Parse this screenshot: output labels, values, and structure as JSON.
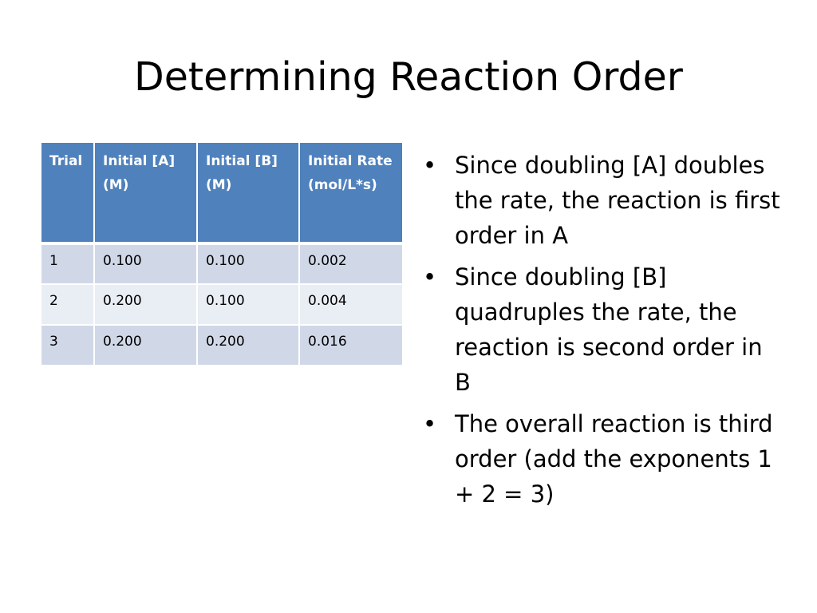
{
  "slide": {
    "title": "Determining Reaction Order"
  },
  "table": {
    "headers": [
      "Trial",
      "Initial [A] (M)",
      "Initial [B] (M)",
      "Initial Rate (mol/L*s)"
    ],
    "rows": [
      [
        "1",
        "0.100",
        "0.100",
        "0.002"
      ],
      [
        "2",
        "0.200",
        "0.100",
        "0.004"
      ],
      [
        "3",
        "0.200",
        "0.200",
        "0.016"
      ]
    ],
    "colors": {
      "header": "#4f81bd",
      "row_odd": "#d0d8e8",
      "row_even": "#e9edf4"
    }
  },
  "bullets": [
    "Since doubling [A] doubles the rate, the reaction is first order in A",
    "Since doubling [B] quadruples the rate, the reaction is second order in B",
    "The overall reaction is third order (add the exponents 1 + 2 = 3)"
  ],
  "bullet_symbol": "•"
}
